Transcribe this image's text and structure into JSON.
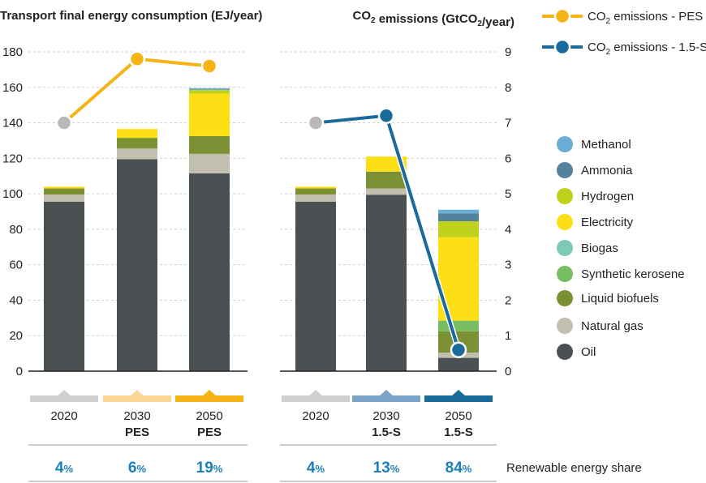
{
  "chart_data": {
    "type": "bar",
    "stacked": true,
    "left_title": "Transport final energy consumption (EJ/year)",
    "right_title": "CO2 emissions (GtCO2/year)",
    "y_left": {
      "ylim": [
        0,
        180
      ],
      "ticks": [
        0,
        20,
        40,
        60,
        80,
        100,
        120,
        140,
        160,
        180
      ]
    },
    "y_right": {
      "ylim": [
        0,
        9
      ],
      "ticks": [
        0,
        1,
        2,
        3,
        4,
        5,
        6,
        7,
        8,
        9
      ]
    },
    "fuels": [
      {
        "name": "Oil",
        "color": "#4b5053"
      },
      {
        "name": "Natural gas",
        "color": "#c2bfae"
      },
      {
        "name": "Liquid biofuels",
        "color": "#7b9133"
      },
      {
        "name": "Synthetic kerosene",
        "color": "#77bd61"
      },
      {
        "name": "Biogas",
        "color": "#7fcab5"
      },
      {
        "name": "Electricity",
        "color": "#fedf16"
      },
      {
        "name": "Hydrogen",
        "color": "#bfd11b"
      },
      {
        "name": "Ammonia",
        "color": "#53829e"
      },
      {
        "name": "Methanol",
        "color": "#69acd6"
      }
    ],
    "legend_order": [
      "Methanol",
      "Ammonia",
      "Hydrogen",
      "Electricity",
      "Biogas",
      "Synthetic kerosene",
      "Liquid biofuels",
      "Natural gas",
      "Oil"
    ],
    "panels": [
      {
        "id": "pes",
        "bars": [
          {
            "year": "2020",
            "scenario": "",
            "values": [
              95.5,
              4,
              3.5,
              0,
              0,
              1,
              0,
              0,
              0
            ],
            "share": "4",
            "tab_color": "#cfcfcf",
            "marker_color": "#b8b8b8"
          },
          {
            "year": "2030",
            "scenario": "PES",
            "values": [
              119.5,
              6,
              6,
              0,
              0,
              5,
              0,
              0,
              0
            ],
            "share": "6",
            "tab_color": "#fcd896",
            "marker_color": "#f6b316"
          },
          {
            "year": "2050",
            "scenario": "PES",
            "values": [
              111.5,
              11,
              10,
              0,
              0,
              24,
              2,
              0,
              1
            ],
            "share": "19",
            "tab_color": "#f6b316",
            "marker_color": "#f6b316"
          }
        ],
        "co2": [
          7.0,
          8.8,
          8.6
        ],
        "line_color": "#f6b316"
      },
      {
        "id": "1.5-S",
        "bars": [
          {
            "year": "2020",
            "scenario": "",
            "values": [
              95.5,
              4,
              3.5,
              0,
              0,
              1,
              0,
              0,
              0
            ],
            "share": "4",
            "tab_color": "#cfcfcf",
            "marker_color": "#b8b8b8"
          },
          {
            "year": "2030",
            "scenario": "1.5-S",
            "values": [
              99.5,
              3.5,
              9.5,
              0,
              0,
              8.5,
              0,
              0,
              0
            ],
            "share": "13",
            "tab_color": "#7aa4c8",
            "marker_color": "#1a6b9c"
          },
          {
            "year": "2050",
            "scenario": "1.5-S",
            "values": [
              7.5,
              3,
              12,
              6,
              0,
              47,
              9,
              4.5,
              2
            ],
            "share": "84",
            "tab_color": "#1a6b9c",
            "marker_color": "#1a6b9c"
          }
        ],
        "co2": [
          7.0,
          7.2,
          0.6
        ],
        "line_color": "#1a6b9c"
      }
    ],
    "series_legend": [
      {
        "name": "CO2 emissions - PES",
        "color": "#f6b316"
      },
      {
        "name": "CO2 emissions - 1.5-S",
        "color": "#1a6b9c"
      }
    ],
    "share_label": "Renewable energy share",
    "share_unit": "%"
  }
}
